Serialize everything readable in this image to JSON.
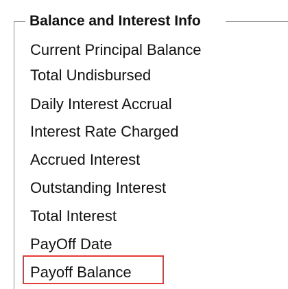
{
  "group": {
    "title": "Balance and Interest Info",
    "items": [
      "Current Principal Balance",
      "Total Undisbursed",
      "Daily Interest Accrual",
      "Interest Rate Charged",
      "Accrued Interest",
      "Outstanding Interest",
      "Total Interest",
      "PayOff Date",
      "Payoff Balance"
    ],
    "highlighted_item": "Payoff Balance",
    "highlight_color": "#e53935",
    "border_color": "#8a8a8a"
  }
}
